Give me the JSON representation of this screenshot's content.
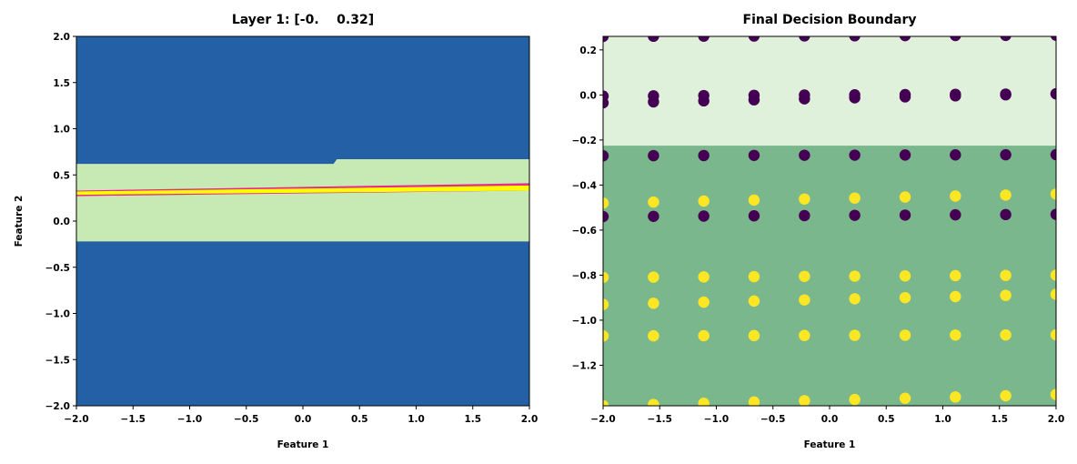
{
  "chart_data": [
    {
      "type": "heatmap",
      "title": "Layer 1: [-0.    0.32]",
      "xlabel": "Feature 1",
      "ylabel": "Feature 2",
      "xlim": [
        -2.0,
        2.0
      ],
      "ylim": [
        -2.0,
        2.0
      ],
      "xticks": [
        "−2.0",
        "−1.5",
        "−1.0",
        "−0.5",
        "0.0",
        "0.5",
        "1.0",
        "1.5",
        "2.0"
      ],
      "yticks": [
        "−2.0",
        "−1.5",
        "−1.0",
        "−0.5",
        "0.0",
        "0.5",
        "1.0",
        "1.5",
        "2.0"
      ],
      "grid": false,
      "colors": {
        "background": "#2360a5",
        "band": "#c7e9b4",
        "ridge_magenta": "#e7298a",
        "ridge_yellow": "#ffff00"
      },
      "regions": {
        "band_y": [
          -0.22,
          0.62
        ],
        "band_step_x": 0.3,
        "band_top_right": 0.67,
        "ridge_y_left": [
          0.27,
          0.33
        ],
        "ridge_y_right": [
          0.33,
          0.41
        ]
      }
    },
    {
      "type": "scatter",
      "title": "Final Decision Boundary",
      "xlabel": "Feature 1",
      "ylabel": "",
      "xlim": [
        -2.0,
        2.0
      ],
      "ylim": [
        -1.38,
        0.26
      ],
      "xticks": [
        "−2.0",
        "−1.5",
        "−1.0",
        "−0.5",
        "0.0",
        "0.5",
        "1.0",
        "1.5",
        "2.0"
      ],
      "yticks": [
        "0.2",
        "0.0",
        "−0.2",
        "−0.4",
        "−0.6",
        "−0.8",
        "−1.0",
        "−1.2"
      ],
      "grid": false,
      "boundary_y": -0.225,
      "colors": {
        "region_upper": "#dff1da",
        "region_lower": "#7bb78c",
        "class_0": "#440154",
        "class_1": "#fde725"
      },
      "x_grid": [
        -2.0,
        -1.555,
        -1.111,
        -0.667,
        -0.222,
        0.222,
        0.667,
        1.111,
        1.555,
        2.0
      ],
      "rows": [
        {
          "y_left": 0.26,
          "y_right": 0.265,
          "class": 0
        },
        {
          "y_left": -0.005,
          "y_right": 0.005,
          "class": 0
        },
        {
          "y_left": -0.035,
          "y_right": 0.005,
          "class": 0
        },
        {
          "y_left": -0.27,
          "y_right": -0.265,
          "class": 0
        },
        {
          "y_left": -0.48,
          "y_right": -0.44,
          "class": 1
        },
        {
          "y_left": -0.54,
          "y_right": -0.53,
          "class": 0
        },
        {
          "y_left": -0.81,
          "y_right": -0.8,
          "class": 1
        },
        {
          "y_left": -0.93,
          "y_right": -0.885,
          "class": 1
        },
        {
          "y_left": -1.07,
          "y_right": -1.065,
          "class": 1
        },
        {
          "y_left": -1.38,
          "y_right": -1.33,
          "class": 1
        }
      ]
    }
  ]
}
